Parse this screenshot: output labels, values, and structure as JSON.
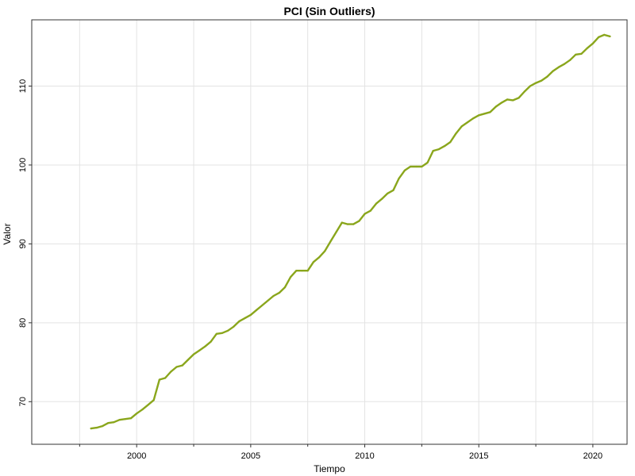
{
  "chart_data": {
    "type": "line",
    "title": "PCI (Sin Outliers)",
    "xlabel": "Tiempo",
    "ylabel": "Valor",
    "xlim": [
      1995.4,
      2021.5
    ],
    "ylim": [
      64.6,
      118.4
    ],
    "grid": true,
    "line_color": "#8aa61c",
    "grid_color": "#e3e3e3",
    "x_ticks": [
      {
        "value": 2000,
        "label": "2000"
      },
      {
        "value": 2005,
        "label": "2005"
      },
      {
        "value": 2010,
        "label": "2010"
      },
      {
        "value": 2015,
        "label": "2015"
      },
      {
        "value": 2020,
        "label": "2020"
      }
    ],
    "x_minor_ticks": [
      1997.5,
      2002.5,
      2007.5,
      2012.5,
      2017.5
    ],
    "y_ticks": [
      {
        "value": 70,
        "label": "70"
      },
      {
        "value": 80,
        "label": "80"
      },
      {
        "value": 90,
        "label": "90"
      },
      {
        "value": 100,
        "label": "100"
      },
      {
        "value": 110,
        "label": "110"
      }
    ],
    "series": [
      {
        "x": [
          1998.0,
          1998.25,
          1998.5,
          1998.75,
          1999.0,
          1999.25,
          1999.5,
          1999.75,
          2000.0,
          2000.25,
          2000.5,
          2000.75,
          2001.0,
          2001.25,
          2001.5,
          2001.75,
          2002.0,
          2002.25,
          2002.5,
          2002.75,
          2003.0,
          2003.25,
          2003.5,
          2003.75,
          2004.0,
          2004.25,
          2004.5,
          2004.75,
          2005.0,
          2005.25,
          2005.5,
          2005.75,
          2006.0,
          2006.25,
          2006.5,
          2006.75,
          2007.0,
          2007.25,
          2007.5,
          2007.75,
          2008.0,
          2008.25,
          2008.5,
          2008.75,
          2009.0,
          2009.25,
          2009.5,
          2009.75,
          2010.0,
          2010.25,
          2010.5,
          2010.75,
          2011.0,
          2011.25,
          2011.5,
          2011.75,
          2012.0,
          2012.25,
          2012.5,
          2012.75,
          2013.0,
          2013.25,
          2013.5,
          2013.75,
          2014.0,
          2014.25,
          2014.5,
          2014.75,
          2015.0,
          2015.25,
          2015.5,
          2015.75,
          2016.0,
          2016.25,
          2016.5,
          2016.75,
          2017.0,
          2017.25,
          2017.5,
          2017.75,
          2018.0,
          2018.25,
          2018.5,
          2018.75,
          2019.0,
          2019.25,
          2019.5,
          2019.75,
          2020.0,
          2020.25,
          2020.5,
          2020.75
        ],
        "values": [
          66.6,
          66.7,
          66.9,
          67.3,
          67.4,
          67.7,
          67.8,
          67.9,
          68.5,
          69.0,
          69.6,
          70.2,
          72.8,
          73.0,
          73.8,
          74.4,
          74.6,
          75.3,
          76.0,
          76.5,
          77.0,
          77.6,
          78.6,
          78.7,
          79.0,
          79.5,
          80.2,
          80.6,
          81.0,
          81.6,
          82.2,
          82.8,
          83.4,
          83.8,
          84.5,
          85.8,
          86.6,
          86.6,
          86.6,
          87.7,
          88.3,
          89.1,
          90.3,
          91.5,
          92.7,
          92.5,
          92.5,
          92.9,
          93.8,
          94.2,
          95.1,
          95.7,
          96.4,
          96.8,
          98.3,
          99.3,
          99.8,
          99.8,
          99.8,
          100.3,
          101.8,
          102.0,
          102.4,
          102.9,
          104.0,
          104.9,
          105.4,
          105.9,
          106.3,
          106.5,
          106.7,
          107.4,
          107.9,
          108.3,
          108.2,
          108.5,
          109.3,
          110.0,
          110.4,
          110.7,
          111.2,
          111.9,
          112.4,
          112.8,
          113.3,
          114.0,
          114.1,
          114.8,
          115.4,
          116.2,
          116.5,
          116.3
        ]
      }
    ]
  }
}
